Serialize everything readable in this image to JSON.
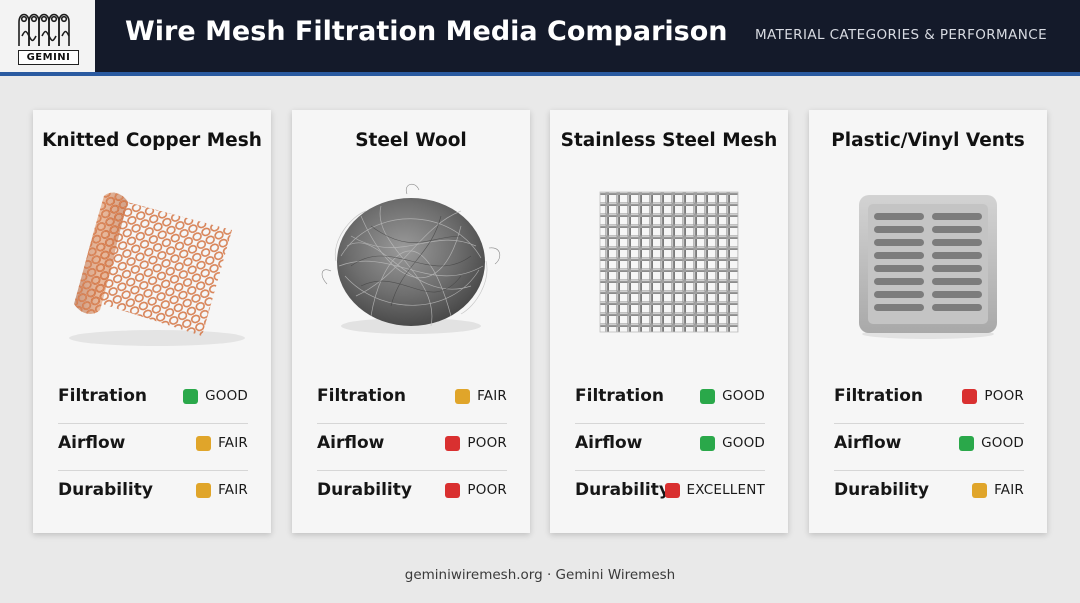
{
  "header": {
    "logo_text": "GEMINI",
    "title": "Wire Mesh Filtration Media Comparison",
    "subtitle": "MATERIAL CATEGORIES & PERFORMANCE"
  },
  "colors": {
    "good": "#2aa84a",
    "fair": "#e0a52a",
    "poor": "#d93030",
    "excellent": "#d93030",
    "header_bg": "#141a2a",
    "accent": "#2a5aa0"
  },
  "cards": [
    {
      "title": "Knitted Copper Mesh",
      "image_icon": "copper-mesh-roll-icon",
      "metrics": [
        {
          "label": "Filtration",
          "rating": "GOOD",
          "color": "#2aa84a"
        },
        {
          "label": "Airflow",
          "rating": "FAIR",
          "color": "#e0a52a"
        },
        {
          "label": "Durability",
          "rating": "FAIR",
          "color": "#e0a52a"
        }
      ]
    },
    {
      "title": "Steel Wool",
      "image_icon": "steel-wool-icon",
      "metrics": [
        {
          "label": "Filtration",
          "rating": "FAIR",
          "color": "#e0a52a"
        },
        {
          "label": "Airflow",
          "rating": "POOR",
          "color": "#d93030"
        },
        {
          "label": "Durability",
          "rating": "POOR",
          "color": "#d93030"
        }
      ]
    },
    {
      "title": "Stainless Steel Mesh",
      "image_icon": "woven-steel-mesh-icon",
      "metrics": [
        {
          "label": "Filtration",
          "rating": "GOOD",
          "color": "#2aa84a"
        },
        {
          "label": "Airflow",
          "rating": "GOOD",
          "color": "#2aa84a"
        },
        {
          "label": "Durability",
          "rating": "EXCELLENT",
          "color": "#d93030"
        }
      ]
    },
    {
      "title": "Plastic/Vinyl Vents",
      "image_icon": "plastic-vent-icon",
      "metrics": [
        {
          "label": "Filtration",
          "rating": "POOR",
          "color": "#d93030"
        },
        {
          "label": "Airflow",
          "rating": "GOOD",
          "color": "#2aa84a"
        },
        {
          "label": "Durability",
          "rating": "FAIR",
          "color": "#e0a52a"
        }
      ]
    }
  ],
  "footer": {
    "text": "geminiwiremesh.org · Gemini Wiremesh"
  }
}
